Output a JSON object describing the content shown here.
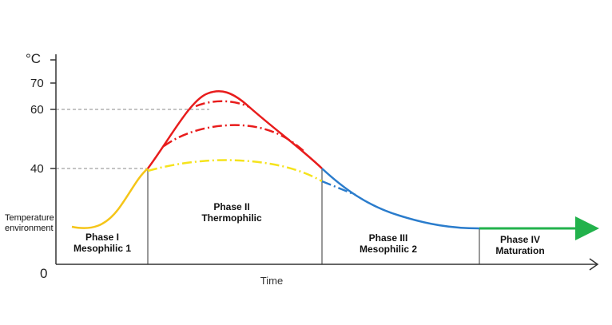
{
  "y_axis": {
    "unit": "°C",
    "ticks": [
      "70",
      "60",
      "40"
    ],
    "origin": "0"
  },
  "x_axis": {
    "label": "Time"
  },
  "environment_label": [
    "Temperature",
    "environment"
  ],
  "phases": [
    {
      "line1": "Phase I",
      "line2": "Mesophilic 1"
    },
    {
      "line1": "Phase II",
      "line2": "Thermophilic"
    },
    {
      "line1": "Phase III",
      "line2": "Mesophilic 2"
    },
    {
      "line1": "Phase IV",
      "line2": "Maturation"
    }
  ],
  "colors": {
    "axis": "#333333",
    "phase_divider": "#777777",
    "reference_line": "#888888",
    "mesophilic_1": "#f5c518",
    "thermophilic": "#e81c1c",
    "mesophilic_2": "#2a7ccc",
    "maturation": "#22b24c",
    "low_temp_variant": "#f5e31c"
  }
}
